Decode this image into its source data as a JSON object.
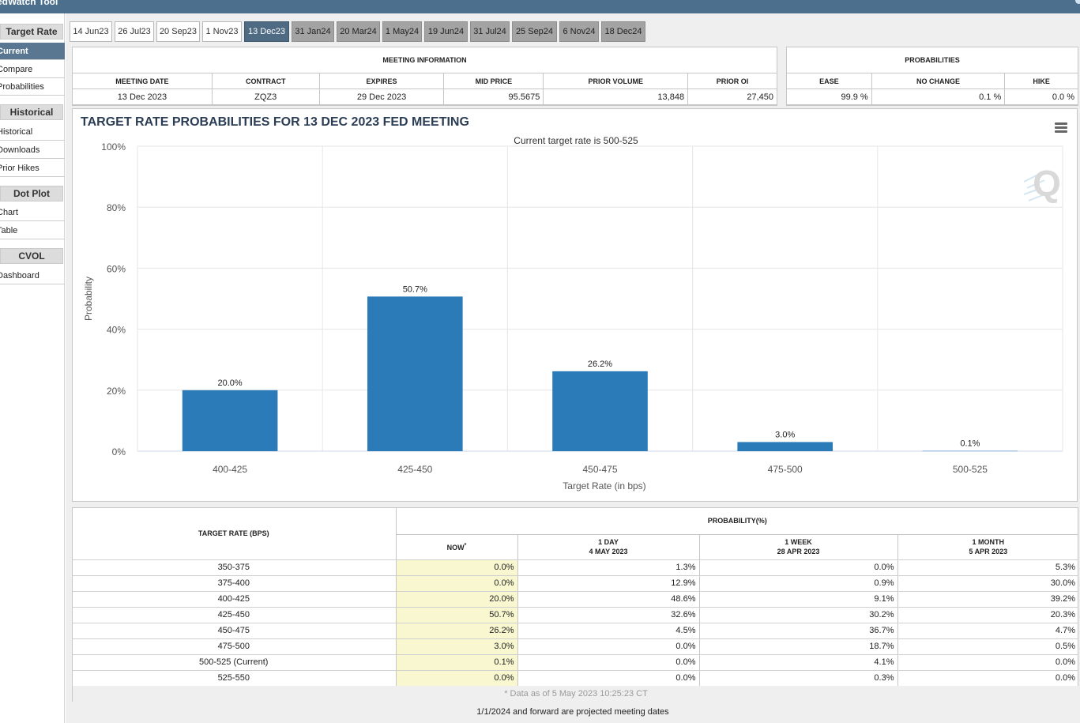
{
  "app": {
    "title": "edWatch Tool"
  },
  "sidebar": {
    "sections": [
      {
        "header": "Target Rate",
        "items": [
          "Current",
          "Compare",
          "Probabilities"
        ]
      },
      {
        "header": "Historical",
        "items": [
          "Historical",
          "Downloads",
          "Prior Hikes"
        ]
      },
      {
        "header": "Dot Plot",
        "items": [
          "Chart",
          "Table"
        ]
      },
      {
        "header": "CVOL",
        "items": [
          "Dashboard"
        ]
      }
    ],
    "active_item": "Current"
  },
  "tabs": [
    {
      "label": "14 Jun23",
      "state": "normal"
    },
    {
      "label": "26 Jul23",
      "state": "normal"
    },
    {
      "label": "20 Sep23",
      "state": "normal"
    },
    {
      "label": "1 Nov23",
      "state": "normal"
    },
    {
      "label": "13 Dec23",
      "state": "selected"
    },
    {
      "label": "31 Jan24",
      "state": "gray"
    },
    {
      "label": "20 Mar24",
      "state": "gray"
    },
    {
      "label": "1 May24",
      "state": "gray"
    },
    {
      "label": "19 Jun24",
      "state": "gray"
    },
    {
      "label": "31 Jul24",
      "state": "gray"
    },
    {
      "label": "25 Sep24",
      "state": "gray"
    },
    {
      "label": "6 Nov24",
      "state": "gray"
    },
    {
      "label": "18 Dec24",
      "state": "gray"
    }
  ],
  "meeting_info": {
    "title": "MEETING INFORMATION",
    "headers": [
      "MEETING DATE",
      "CONTRACT",
      "EXPIRES",
      "MID PRICE",
      "PRIOR VOLUME",
      "PRIOR OI"
    ],
    "values": [
      "13 Dec 2023",
      "ZQZ3",
      "29 Dec 2023",
      "95.5675",
      "13,848",
      "27,450"
    ]
  },
  "probabilities": {
    "title": "PROBABILITIES",
    "headers": [
      "EASE",
      "NO CHANGE",
      "HIKE"
    ],
    "values": [
      "99.9 %",
      "0.1 %",
      "0.0 %"
    ]
  },
  "chart_data": {
    "type": "bar",
    "title": "TARGET RATE PROBABILITIES FOR 13 DEC 2023 FED MEETING",
    "subtitle": "Current target rate is 500-525",
    "xlabel": "Target Rate (in bps)",
    "ylabel": "Probability",
    "categories": [
      "400-425",
      "425-450",
      "450-475",
      "475-500",
      "500-525"
    ],
    "values": [
      20.0,
      50.7,
      26.2,
      3.0,
      0.1
    ],
    "data_labels": [
      "20.0%",
      "50.7%",
      "26.2%",
      "3.0%",
      "0.1%"
    ],
    "y_ticks": [
      "0%",
      "20%",
      "40%",
      "60%",
      "80%",
      "100%"
    ],
    "ylim": [
      0,
      100
    ],
    "grid": true,
    "bar_color": "#2b7bb9"
  },
  "prob_table": {
    "left_header": "TARGET RATE (BPS)",
    "group_header": "PROBABILITY(%)",
    "columns": [
      {
        "l1": "NOW",
        "l2": ""
      },
      {
        "l1": "1 DAY",
        "l2": "4 MAY 2023"
      },
      {
        "l1": "1 WEEK",
        "l2": "28 APR 2023"
      },
      {
        "l1": "1 MONTH",
        "l2": "5 APR 2023"
      }
    ],
    "now_marker": "*",
    "rows": [
      {
        "rate": "350-375",
        "now": "0.0%",
        "d1": "1.3%",
        "w1": "0.0%",
        "m1": "5.3%"
      },
      {
        "rate": "375-400",
        "now": "0.0%",
        "d1": "12.9%",
        "w1": "0.9%",
        "m1": "30.0%"
      },
      {
        "rate": "400-425",
        "now": "20.0%",
        "d1": "48.6%",
        "w1": "9.1%",
        "m1": "39.2%"
      },
      {
        "rate": "425-450",
        "now": "50.7%",
        "d1": "32.6%",
        "w1": "30.2%",
        "m1": "20.3%"
      },
      {
        "rate": "450-475",
        "now": "26.2%",
        "d1": "4.5%",
        "w1": "36.7%",
        "m1": "4.7%"
      },
      {
        "rate": "475-500",
        "now": "3.0%",
        "d1": "0.0%",
        "w1": "18.7%",
        "m1": "0.5%"
      },
      {
        "rate": "500-525 (Current)",
        "now": "0.1%",
        "d1": "0.0%",
        "w1": "4.1%",
        "m1": "0.0%"
      },
      {
        "rate": "525-550",
        "now": "0.0%",
        "d1": "0.0%",
        "w1": "0.3%",
        "m1": "0.0%"
      }
    ],
    "footnote": "* Data as of 5 May 2023 10:25:23 CT"
  },
  "projected_note": "1/1/2024 and forward are projected meeting dates"
}
